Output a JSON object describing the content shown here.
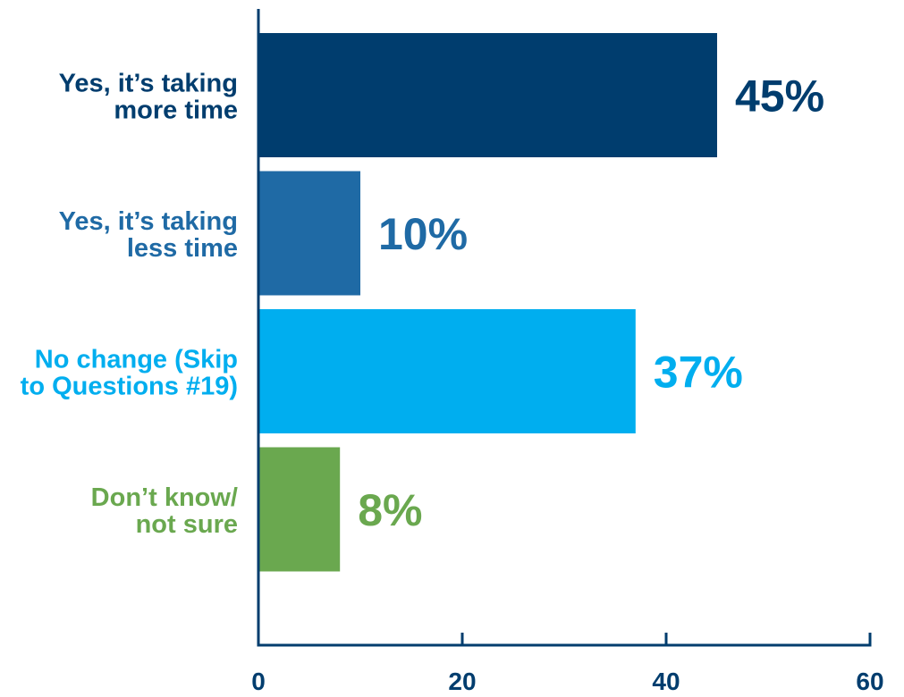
{
  "chart_data": {
    "type": "bar",
    "orientation": "horizontal",
    "categories": [
      [
        "Yes, it’s taking",
        "more time"
      ],
      [
        "Yes, it’s taking",
        "less time"
      ],
      [
        "No change (Skip",
        "to Questions #19)"
      ],
      [
        "Don’t know/",
        "not sure"
      ]
    ],
    "values": [
      45,
      10,
      37,
      8
    ],
    "value_labels": [
      "45%",
      "10%",
      "37%",
      "8%"
    ],
    "colors": [
      "#003d6e",
      "#1f6aa5",
      "#00aeef",
      "#6aa84f"
    ],
    "x_ticks": [
      0,
      20,
      40,
      60
    ],
    "tick_labels": [
      "0",
      "20",
      "40",
      "60"
    ],
    "xlim": [
      0,
      60
    ],
    "title": "",
    "xlabel": "",
    "ylabel": "",
    "grid": false,
    "axis_color": "#003d6e"
  }
}
